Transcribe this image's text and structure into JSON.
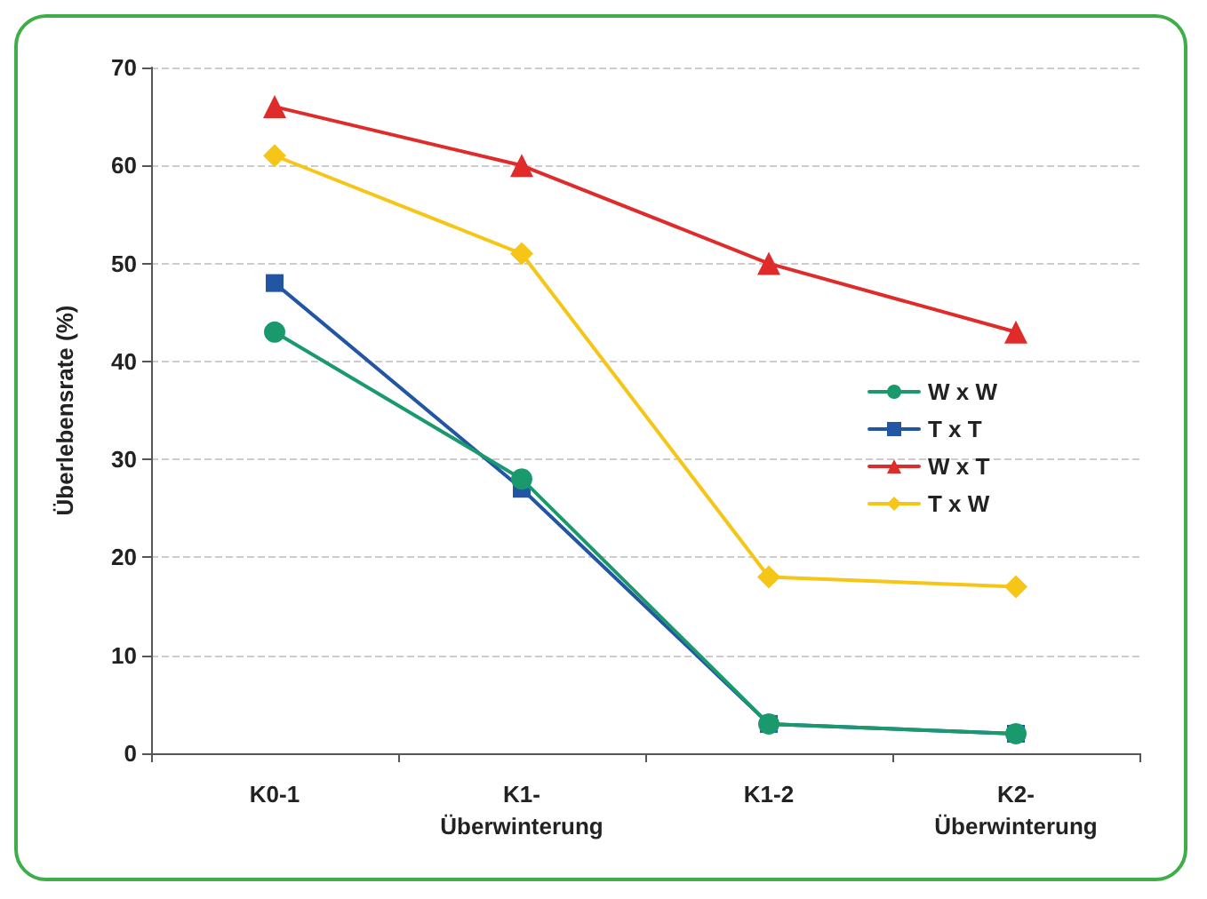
{
  "chart_data": {
    "type": "line",
    "ylabel": "Überlebensrate (%)",
    "categories": [
      "K0-1",
      "K1-\nÜberwinterung",
      "K1-2",
      "K2-\nÜberwinterung"
    ],
    "series": [
      {
        "name": "W x W",
        "color": "#1a9a6c",
        "marker": "circle",
        "values": [
          43,
          28,
          3,
          2
        ]
      },
      {
        "name": "T x T",
        "color": "#2255a4",
        "marker": "square",
        "values": [
          48,
          27,
          3,
          2
        ]
      },
      {
        "name": "W x T",
        "color": "#e02b2b",
        "marker": "triangle",
        "values": [
          66,
          60,
          50,
          43
        ]
      },
      {
        "name": "T x W",
        "color": "#f5c518",
        "marker": "diamond",
        "values": [
          61,
          51,
          18,
          17
        ]
      }
    ],
    "ylim": [
      0,
      70
    ],
    "yticks": [
      0,
      10,
      20,
      30,
      40,
      50,
      60,
      70
    ],
    "grid": "y",
    "legend": "right",
    "line_style": "solid"
  }
}
